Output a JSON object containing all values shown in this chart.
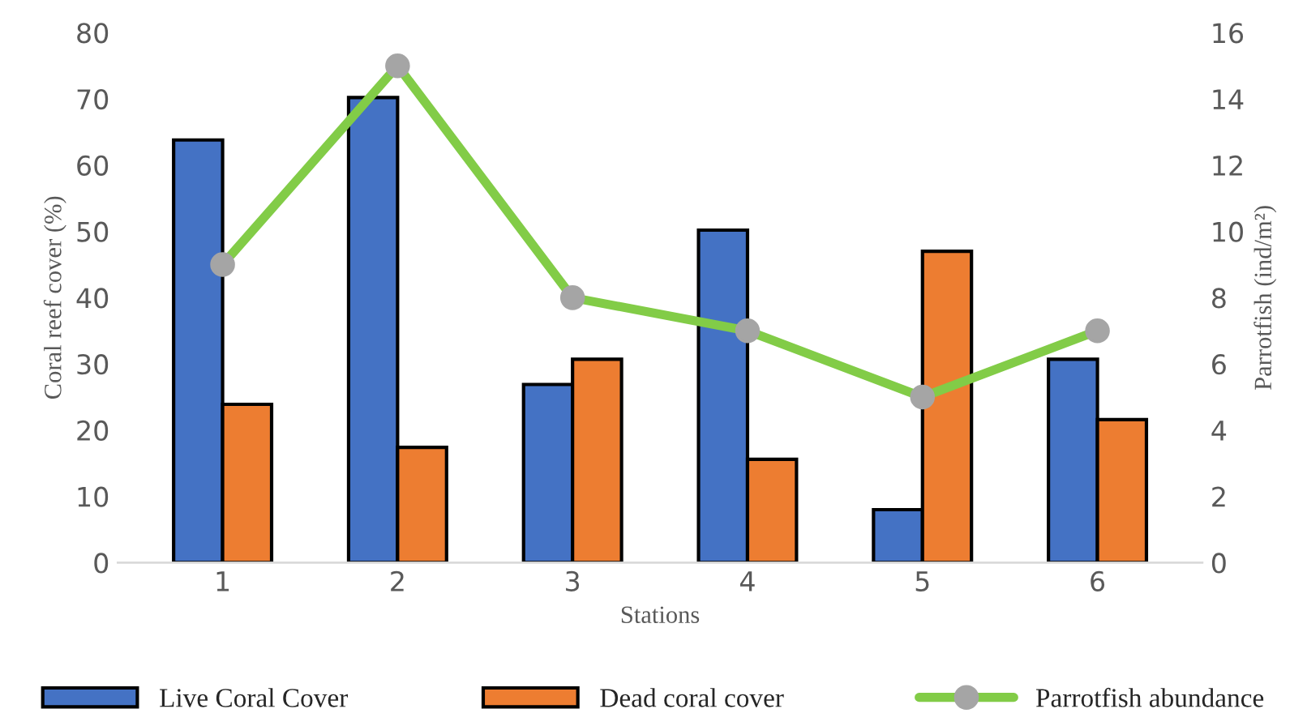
{
  "chart_data": {
    "type": "bar",
    "xlabel": "Stations",
    "ylabel": "Coral reef cover (%)",
    "y2label": "Parrotfish (ind/m²)",
    "categories": [
      "1",
      "2",
      "3",
      "4",
      "5",
      "6"
    ],
    "series": [
      {
        "name": "Live Coral Cover",
        "color": "#4472c4",
        "values": [
          63.8,
          70.2,
          26.9,
          50.2,
          8.0,
          30.7
        ]
      },
      {
        "name": "Dead coral cover",
        "color": "#ed7d31",
        "values": [
          23.9,
          17.4,
          30.7,
          15.6,
          47.0,
          21.6
        ]
      },
      {
        "name": "Parrotfish abundance",
        "type": "line",
        "axis": "y2",
        "color": "#82cc47",
        "marker": "circle",
        "values": [
          9,
          15,
          8,
          7,
          5,
          7
        ]
      }
    ],
    "ylim": [
      0,
      80
    ],
    "yticks": [
      0,
      10,
      20,
      30,
      40,
      50,
      60,
      70,
      80
    ],
    "y2lim": [
      0,
      16
    ],
    "y2ticks": [
      0,
      2,
      4,
      6,
      8,
      10,
      12,
      14,
      16
    ],
    "grid": false,
    "legend": "bottom"
  }
}
